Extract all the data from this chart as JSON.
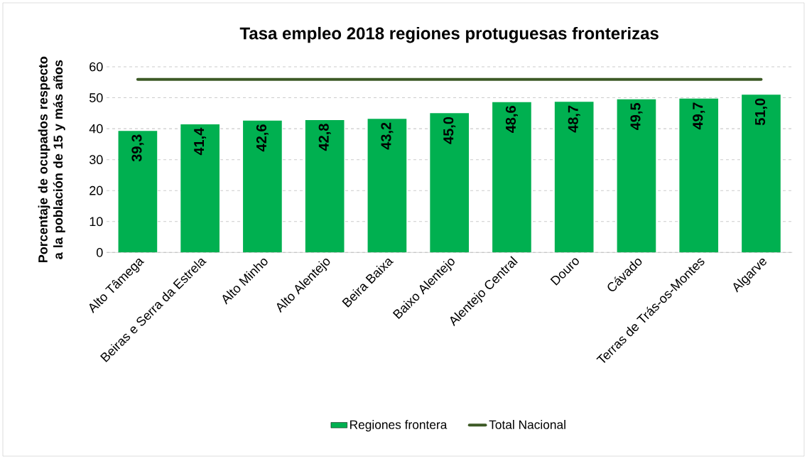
{
  "chart_data": {
    "type": "bar",
    "title": "Tasa empleo 2018 regiones protuguesas fronterizas",
    "ylabel": "Porcentaje de ocupados respecto a la población de 15 y más años",
    "categories": [
      "Alto Tâmega",
      "Beiras e Serra da Estrela",
      "Alto Minho",
      "Alto Alentejo",
      "Beira Baixa",
      "Baixo Alentejo",
      "Alentejo Central",
      "Douro",
      "Cávado",
      "Terras de Trás-os-Montes",
      "Algarve"
    ],
    "series": [
      {
        "name": "Regiones frontera",
        "color": "#00b050",
        "values": [
          39.3,
          41.4,
          42.6,
          42.8,
          43.2,
          45.0,
          48.6,
          48.7,
          49.5,
          49.7,
          51.0
        ],
        "value_labels": [
          "39,3",
          "41,4",
          "42,6",
          "42,8",
          "43,2",
          "45,0",
          "48,6",
          "48,7",
          "49,5",
          "49,7",
          "51,0"
        ]
      },
      {
        "name": "Total Nacional",
        "type": "line",
        "color": "#3d5a26",
        "values": [
          55.9,
          55.9,
          55.9,
          55.9,
          55.9,
          55.9,
          55.9,
          55.9,
          55.9,
          55.9,
          55.9
        ]
      }
    ],
    "ylim": [
      0,
      60
    ],
    "yticks": [
      0,
      10,
      20,
      30,
      40,
      50,
      60
    ],
    "grid": "y",
    "legend": "bottom"
  }
}
